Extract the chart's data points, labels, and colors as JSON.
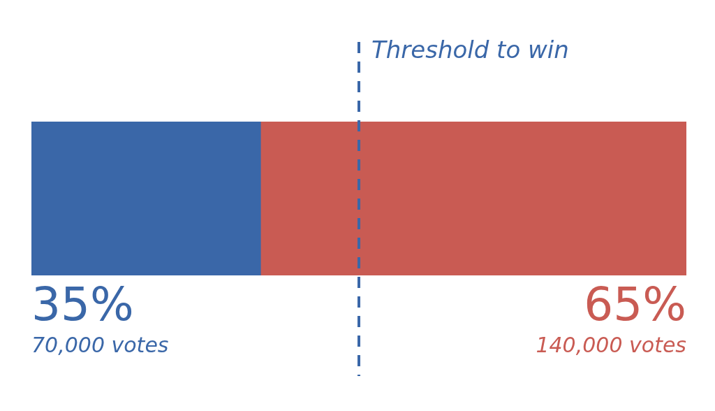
{
  "chart_data": {
    "type": "bar",
    "orientation": "horizontal",
    "stacked": true,
    "categories": [
      null
    ],
    "series": [
      {
        "color": "#3a67a8",
        "values": [
          35
        ],
        "value_labels": [
          "35%"
        ]
      },
      {
        "color": "#c95b53",
        "values": [
          65
        ],
        "value_labels": [
          "65%"
        ]
      }
    ],
    "tick_labels": false,
    "legend": false,
    "ref_lines": [
      {
        "axis": "x",
        "value": 50,
        "label": "Threshold to win",
        "color": "#3a67a8",
        "line_style": "dashed"
      }
    ],
    "annotations": [
      "70,000 votes",
      "140,000 votes"
    ]
  }
}
